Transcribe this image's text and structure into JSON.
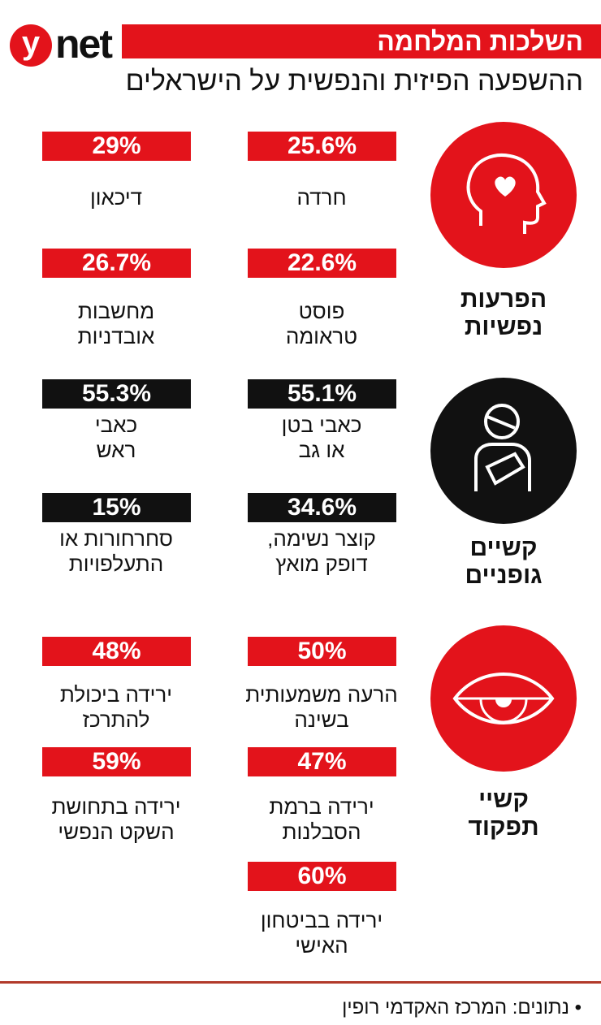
{
  "header": {
    "logo_letter": "y",
    "logo_word": "net",
    "title": "השלכות המלחמה",
    "subtitle": "ההשפעה הפיזית והנפשית על הישראלים"
  },
  "colors": {
    "accent": "#e3131b",
    "dark": "#111111"
  },
  "sections": [
    {
      "category": [
        "הפרעות",
        "נפשיות"
      ],
      "icon": "head-heart-icon",
      "stats": [
        {
          "value": "25.6%",
          "label": [
            "חרדה"
          ]
        },
        {
          "value": "29%",
          "label": [
            "דיכאון"
          ]
        },
        {
          "value": "22.6%",
          "label": [
            "פוסט",
            "טראומה"
          ]
        },
        {
          "value": "26.7%",
          "label": [
            "מחשבות",
            "אובדניות"
          ]
        }
      ]
    },
    {
      "category": [
        "קשיים",
        "גופניים"
      ],
      "icon": "injured-person-icon",
      "stats": [
        {
          "value": "55.1%",
          "label": [
            "כאבי בטן",
            "או גב"
          ]
        },
        {
          "value": "55.3%",
          "label": [
            "כאבי",
            "ראש"
          ]
        },
        {
          "value": "34.6%",
          "label": [
            "קוצר נשימה,",
            "דופק מואץ"
          ]
        },
        {
          "value": "15%",
          "label": [
            "סחרחורות או",
            "התעלפויות"
          ]
        }
      ]
    },
    {
      "category": [
        "קשיי",
        "תפקוד"
      ],
      "icon": "tired-eye-icon",
      "stats": [
        {
          "value": "50%",
          "label": [
            "הרעה משמעותית",
            "בשינה"
          ]
        },
        {
          "value": "48%",
          "label": [
            "ירידה ביכולת",
            "להתרכז"
          ]
        },
        {
          "value": "47%",
          "label": [
            "ירידה ברמת",
            "הסבלנות"
          ]
        },
        {
          "value": "59%",
          "label": [
            "ירידה בתחושת",
            "השקט הנפשי"
          ]
        },
        {
          "value": "60%",
          "label": [
            "ירידה בביטחון",
            "האישי"
          ]
        }
      ]
    }
  ],
  "footer": {
    "source": "• נתונים: המרכז האקדמי רופין"
  }
}
